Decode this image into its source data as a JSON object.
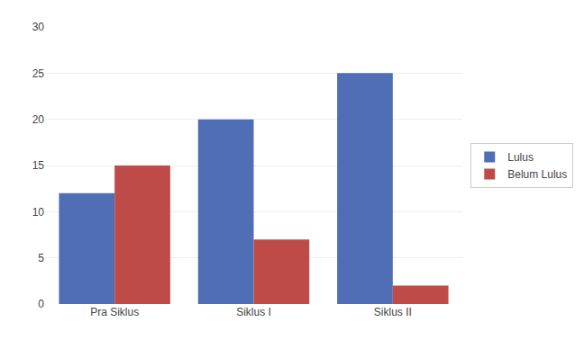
{
  "chart_data": {
    "type": "bar",
    "categories": [
      "Pra Siklus",
      "Siklus I",
      "Siklus II"
    ],
    "series": [
      {
        "name": "Lulus",
        "color": "#4F6EB5",
        "values": [
          12,
          20,
          25
        ]
      },
      {
        "name": "Belum Lulus",
        "color": "#BE4B48",
        "values": [
          15,
          7,
          2
        ]
      }
    ],
    "ylim": [
      0,
      30
    ],
    "yticks": [
      0,
      5,
      10,
      15,
      20,
      25,
      30
    ],
    "grid": true,
    "legend": "right"
  }
}
